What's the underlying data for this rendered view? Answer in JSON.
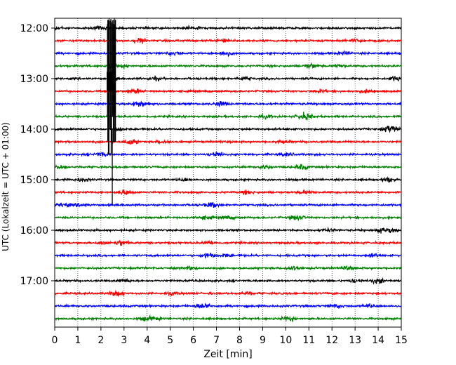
{
  "chart_data": {
    "type": "line",
    "title": "",
    "xlabel": "Zeit  [min]",
    "ylabel": "UTC (Lokalzeit = UTC + 01:00)",
    "xlim": [
      0,
      15
    ],
    "x_ticks": [
      "0",
      "1",
      "2",
      "3",
      "4",
      "5",
      "6",
      "7",
      "8",
      "9",
      "10",
      "11",
      "12",
      "13",
      "14",
      "15"
    ],
    "y_ticks": [
      "12:00",
      "13:00",
      "14:00",
      "15:00",
      "16:00",
      "17:00"
    ],
    "grid": "vertical dotted at each minute",
    "trace_interval_minutes": 15,
    "trace_start_times": [
      "12:00",
      "12:15",
      "12:30",
      "12:45",
      "13:00",
      "13:15",
      "13:30",
      "13:45",
      "14:00",
      "14:15",
      "14:30",
      "14:45",
      "15:00",
      "15:15",
      "15:30",
      "15:45",
      "16:00",
      "16:15",
      "16:30",
      "16:45",
      "17:00",
      "17:15",
      "17:30",
      "17:45"
    ],
    "trace_colors": [
      "#000000",
      "#ff0000",
      "#0000ff",
      "#008000"
    ],
    "events": [
      {
        "start_time": "12:45",
        "x_min": 2.4,
        "description": "large earthquake signal, peak amplitude saturating neighbouring traces through about 14:45"
      }
    ]
  }
}
